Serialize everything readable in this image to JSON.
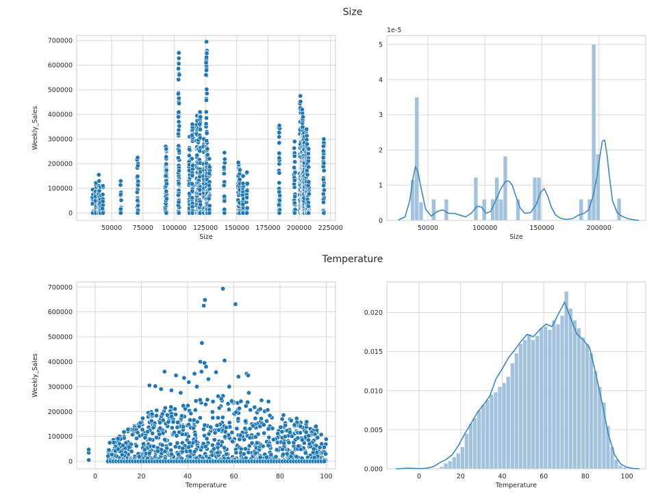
{
  "figure": {
    "row_titles": [
      "Size",
      "Temperature"
    ]
  },
  "chart_data": [
    {
      "type": "scatter",
      "title": "",
      "xlabel": "Size",
      "ylabel": "Weekly_Sales",
      "xlim": [
        22000,
        229000
      ],
      "ylim": [
        -30000,
        720000
      ],
      "xticks": [
        50000,
        75000,
        100000,
        125000,
        150000,
        175000,
        200000,
        225000
      ],
      "xtick_labels": [
        "50000",
        "75000",
        "100000",
        "125000",
        "150000",
        "175000",
        "200000",
        "225000"
      ],
      "yticks": [
        0,
        100000,
        200000,
        300000,
        400000,
        500000,
        600000,
        700000
      ],
      "ytick_labels": [
        "0",
        "100000",
        "200000",
        "300000",
        "400000",
        "500000",
        "600000",
        "700000"
      ],
      "grid": true,
      "color": "#1f77b4",
      "columns": [
        {
          "x": 34875,
          "max": 95000
        },
        {
          "x": 37392,
          "max": 122000
        },
        {
          "x": 39690,
          "max": 155000
        },
        {
          "x": 39910,
          "max": 130000
        },
        {
          "x": 41062,
          "max": 105000
        },
        {
          "x": 42988,
          "max": 110000
        },
        {
          "x": 57197,
          "max": 130000
        },
        {
          "x": 70713,
          "max": 225000
        },
        {
          "x": 93188,
          "max": 270000
        },
        {
          "x": 93638,
          "max": 260000
        },
        {
          "x": 103681,
          "max": 650000
        },
        {
          "x": 112238,
          "max": 310000
        },
        {
          "x": 114533,
          "max": 360000
        },
        {
          "x": 118221,
          "max": 395000
        },
        {
          "x": 119557,
          "max": 345000
        },
        {
          "x": 120653,
          "max": 410000
        },
        {
          "x": 123737,
          "max": 300000
        },
        {
          "x": 125833,
          "max": 695000
        },
        {
          "x": 126512,
          "max": 260000
        },
        {
          "x": 128107,
          "max": 220000
        },
        {
          "x": 140167,
          "max": 245000
        },
        {
          "x": 151315,
          "max": 205000
        },
        {
          "x": 152513,
          "max": 175000
        },
        {
          "x": 155078,
          "max": 150000
        },
        {
          "x": 155083,
          "max": 120000
        },
        {
          "x": 158114,
          "max": 165000
        },
        {
          "x": 184109,
          "max": 355000
        },
        {
          "x": 196321,
          "max": 290000
        },
        {
          "x": 200898,
          "max": 475000
        },
        {
          "x": 202307,
          "max": 420000
        },
        {
          "x": 202505,
          "max": 365000
        },
        {
          "x": 203007,
          "max": 390000
        },
        {
          "x": 203742,
          "max": 325000
        },
        {
          "x": 203750,
          "max": 300000
        },
        {
          "x": 203819,
          "max": 285000
        },
        {
          "x": 204184,
          "max": 310000
        },
        {
          "x": 205863,
          "max": 340000
        },
        {
          "x": 206302,
          "max": 280000
        },
        {
          "x": 207499,
          "max": 260000
        },
        {
          "x": 219622,
          "max": 300000
        }
      ]
    },
    {
      "type": "histogram",
      "title": "",
      "xlabel": "Size",
      "ylabel": "",
      "y_scale_label": "1e-5",
      "xlim": [
        14000,
        241000
      ],
      "ylim": [
        0,
        5.25
      ],
      "xticks": [
        50000,
        100000,
        150000,
        200000
      ],
      "xtick_labels": [
        "50000",
        "100000",
        "150000",
        "200000"
      ],
      "yticks": [
        0,
        1,
        2,
        3,
        4,
        5
      ],
      "ytick_labels": [
        "0",
        "1",
        "2",
        "3",
        "4",
        "5"
      ],
      "grid": true,
      "bar_color": "#9dbfdb",
      "line_color": "#3a87be",
      "bin_start": 34875,
      "bin_width": 3695,
      "values": [
        1.15,
        3.5,
        0.52,
        0,
        0,
        0.6,
        0,
        0,
        0.6,
        0,
        0,
        0,
        0,
        0,
        0,
        1.22,
        0,
        0.6,
        0,
        0.6,
        1.22,
        0.6,
        1.82,
        0,
        0,
        0.6,
        0,
        0,
        0,
        1.22,
        1.22,
        0,
        0,
        0,
        0,
        0,
        0,
        0,
        0,
        0,
        0.6,
        0,
        0.6,
        5.0,
        1.88,
        0,
        0,
        0,
        0,
        0.62
      ],
      "kde": {
        "x": [
          24000,
          30000,
          34000,
          37000,
          39000,
          41000,
          44000,
          48000,
          53000,
          58000,
          63000,
          68000,
          73000,
          78000,
          83000,
          88000,
          93000,
          97000,
          101000,
          105000,
          110000,
          114000,
          118000,
          121000,
          124000,
          127000,
          131000,
          135000,
          140000,
          145000,
          149000,
          152000,
          155000,
          158000,
          162000,
          167000,
          172000,
          177000,
          182000,
          187000,
          191000,
          195000,
          198000,
          201000,
          203000,
          205000,
          207000,
          209000,
          212000,
          216000,
          220000,
          225000,
          230000,
          235000
        ],
        "y": [
          0.01,
          0.1,
          0.55,
          1.2,
          1.52,
          1.42,
          0.92,
          0.32,
          0.12,
          0.25,
          0.3,
          0.2,
          0.2,
          0.15,
          0.1,
          0.2,
          0.4,
          0.38,
          0.2,
          0.25,
          0.6,
          0.9,
          1.1,
          1.12,
          1.0,
          0.7,
          0.35,
          0.2,
          0.22,
          0.45,
          0.8,
          0.9,
          0.7,
          0.4,
          0.15,
          0.05,
          0.03,
          0.05,
          0.15,
          0.2,
          0.3,
          0.7,
          1.2,
          1.85,
          2.25,
          2.28,
          1.9,
          1.3,
          0.55,
          0.22,
          0.12,
          0.05,
          0.02,
          0.0
        ]
      }
    },
    {
      "type": "scatter",
      "title": "",
      "xlabel": "Temperature",
      "ylabel": "Weekly_Sales",
      "xlim": [
        -8,
        104
      ],
      "ylim": [
        -30000,
        720000
      ],
      "xticks": [
        0,
        20,
        40,
        60,
        80,
        100
      ],
      "xtick_labels": [
        "0",
        "20",
        "40",
        "60",
        "80",
        "100"
      ],
      "yticks": [
        0,
        100000,
        200000,
        300000,
        400000,
        500000,
        600000,
        700000
      ],
      "ytick_labels": [
        "0",
        "100000",
        "200000",
        "300000",
        "400000",
        "500000",
        "600000",
        "700000"
      ],
      "grid": true,
      "color": "#1f77b4",
      "envelope": {
        "x": [
          -3,
          0,
          3,
          6,
          10,
          15,
          20,
          25,
          30,
          35,
          40,
          45,
          50,
          55,
          60,
          65,
          70,
          75,
          80,
          85,
          90,
          95,
          100
        ],
        "max": [
          55000,
          30000,
          0,
          95000,
          110000,
          140000,
          185000,
          205000,
          215000,
          230000,
          250000,
          255000,
          260000,
          265000,
          250000,
          245000,
          225000,
          205000,
          190000,
          180000,
          165000,
          150000,
          100000
        ]
      },
      "outliers": [
        {
          "x": 47.0,
          "y": 625000
        },
        {
          "x": 47.5,
          "y": 648000
        },
        {
          "x": 55.3,
          "y": 693000
        },
        {
          "x": 60.7,
          "y": 631000
        },
        {
          "x": 46.2,
          "y": 475000
        },
        {
          "x": 45.5,
          "y": 400000
        },
        {
          "x": 47.3,
          "y": 395000
        },
        {
          "x": 56.0,
          "y": 405000
        },
        {
          "x": 48.0,
          "y": 380000
        },
        {
          "x": 46.0,
          "y": 360000
        },
        {
          "x": 52.3,
          "y": 358000
        },
        {
          "x": 43.0,
          "y": 352000
        },
        {
          "x": 65.5,
          "y": 352000
        },
        {
          "x": 66.2,
          "y": 345000
        },
        {
          "x": 62.0,
          "y": 340000
        },
        {
          "x": 30.0,
          "y": 360000
        },
        {
          "x": 35.0,
          "y": 345000
        },
        {
          "x": 38.5,
          "y": 335000
        },
        {
          "x": 23.5,
          "y": 305000
        },
        {
          "x": 26.0,
          "y": 302000
        },
        {
          "x": 28.5,
          "y": 290000
        },
        {
          "x": 40.5,
          "y": 318000
        },
        {
          "x": 44.0,
          "y": 300000
        },
        {
          "x": 49.0,
          "y": 330000
        },
        {
          "x": 72.0,
          "y": 245000
        },
        {
          "x": 75.0,
          "y": 240000
        },
        {
          "x": 66.5,
          "y": 275000
        },
        {
          "x": 58.0,
          "y": 300000
        },
        {
          "x": 33.0,
          "y": 285000
        },
        {
          "x": 37.0,
          "y": 275000
        }
      ]
    },
    {
      "type": "histogram",
      "title": "",
      "xlabel": "Temperature",
      "ylabel": "",
      "xlim": [
        -15.5,
        109
      ],
      "ylim": [
        0,
        0.0239
      ],
      "xticks": [
        0,
        20,
        40,
        60,
        80,
        100
      ],
      "xtick_labels": [
        "0",
        "20",
        "40",
        "60",
        "80",
        "100"
      ],
      "yticks": [
        0,
        0.005,
        0.01,
        0.015,
        0.02
      ],
      "ytick_labels": [
        "0.000",
        "0.005",
        "0.010",
        "0.015",
        "0.020"
      ],
      "grid": true,
      "bar_color": "#9dbfdb",
      "line_color": "#3a87be",
      "bin_start": -2.06,
      "bin_width": 2.0,
      "values": [
        0.0001,
        0.0,
        0.0,
        0.0,
        0.0,
        0.0001,
        0.0003,
        0.0007,
        0.001,
        0.0015,
        0.002,
        0.0028,
        0.0045,
        0.0058,
        0.0065,
        0.0075,
        0.0082,
        0.0088,
        0.0095,
        0.0098,
        0.0105,
        0.011,
        0.0118,
        0.0135,
        0.0148,
        0.016,
        0.0165,
        0.0172,
        0.0165,
        0.017,
        0.018,
        0.0182,
        0.0178,
        0.019,
        0.0185,
        0.0196,
        0.0227,
        0.0205,
        0.019,
        0.018,
        0.0168,
        0.016,
        0.0148,
        0.0125,
        0.0105,
        0.0085,
        0.0055,
        0.0028,
        0.0012,
        0.0004,
        0.0002
      ],
      "kde": {
        "x": [
          -11,
          -8,
          -5,
          -2,
          1,
          4,
          7,
          10,
          13,
          16,
          19,
          22,
          25,
          28,
          31,
          34,
          37,
          40,
          43,
          46,
          49,
          52,
          55,
          58,
          61,
          64,
          67,
          70,
          73,
          76,
          79,
          82,
          85,
          88,
          91,
          94,
          97,
          100,
          103,
          106
        ],
        "y": [
          0.0,
          5e-05,
          8e-05,
          5e-05,
          3e-05,
          0.0001,
          0.0003,
          0.0008,
          0.0012,
          0.0018,
          0.003,
          0.0045,
          0.0058,
          0.0072,
          0.0082,
          0.0093,
          0.0115,
          0.0128,
          0.0142,
          0.0152,
          0.0163,
          0.0172,
          0.0169,
          0.0178,
          0.0185,
          0.0182,
          0.0198,
          0.0213,
          0.0192,
          0.0172,
          0.0165,
          0.0155,
          0.0122,
          0.0085,
          0.0045,
          0.0018,
          0.0006,
          0.0002,
          5e-05,
          0.0
        ]
      }
    }
  ]
}
